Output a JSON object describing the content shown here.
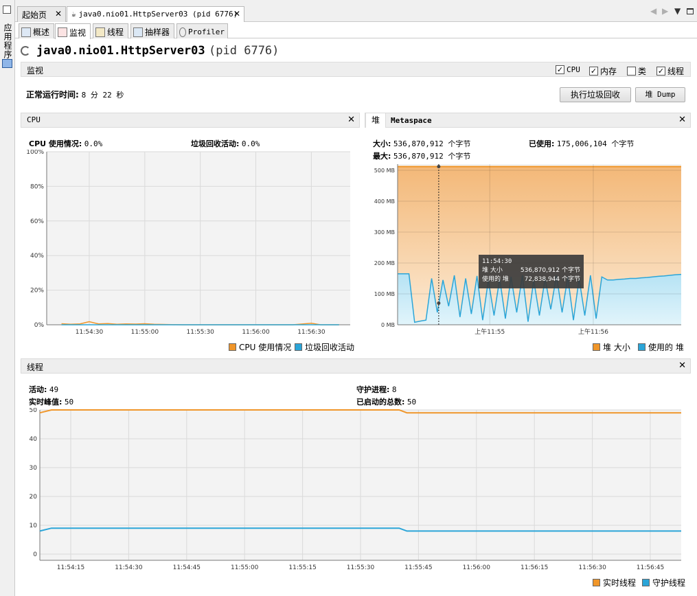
{
  "sidebar": {
    "label": "应用程序"
  },
  "doc_tabs": [
    {
      "label": "起始页",
      "close": "✕"
    },
    {
      "label": "java0.nio01.HttpServer03 (pid 6776)",
      "close": "✕"
    }
  ],
  "sub_tabs": [
    {
      "label": "概述"
    },
    {
      "label": "监视"
    },
    {
      "label": "线程"
    },
    {
      "label": "抽样器"
    },
    {
      "label": "Profiler"
    }
  ],
  "process": {
    "name": "java0.nio01.HttpServer03",
    "pid": "(pid 6776)"
  },
  "monitor": {
    "title": "监视",
    "checkboxes": [
      {
        "label": "CPU",
        "checked": true,
        "mark": "✓"
      },
      {
        "label": "内存",
        "checked": true,
        "mark": "✓"
      },
      {
        "label": "类",
        "checked": false,
        "mark": ""
      },
      {
        "label": "线程",
        "checked": true,
        "mark": "✓"
      }
    ],
    "uptime_label": "正常运行时间:",
    "uptime_value": "8 分 22 秒",
    "gc_button": "执行垃圾回收",
    "dump_button": "堆 Dump"
  },
  "cpu_panel": {
    "title": "CPU",
    "usage_label": "CPU 使用情况:",
    "usage_value": "0.0%",
    "gc_label": "垃圾回收活动:",
    "gc_value": "0.0%",
    "legend": [
      "CPU 使用情况",
      "垃圾回收活动"
    ]
  },
  "heap_panel": {
    "tabs": [
      "堆",
      "Metaspace"
    ],
    "size_label": "大小:",
    "size_value": "536,870,912 个字节",
    "max_label": "最大:",
    "max_value": "536,870,912 个字节",
    "used_label": "已使用:",
    "used_value": "175,006,104 个字节",
    "legend": [
      "堆 大小",
      "使用的 堆"
    ],
    "tooltip": {
      "time": "11:54:30",
      "rows": [
        {
          "name": "堆 大小",
          "value": "536,870,912 个字节"
        },
        {
          "name": "使用的 堆",
          "value": "72,838,944 个字节"
        }
      ]
    }
  },
  "threads_panel": {
    "title": "线程",
    "live_label": "活动:",
    "live_value": "49",
    "peak_label": "实时峰值:",
    "peak_value": "50",
    "daemon_label": "守护进程:",
    "daemon_value": "8",
    "started_label": "已启动的总数:",
    "started_value": "50",
    "legend": [
      "实时线程",
      "守护线程"
    ]
  },
  "colors": {
    "orange": "#f0962a",
    "blue": "#2ba5d8",
    "orange_fill": "#f7c995",
    "blue_fill": "#c4ebf9"
  },
  "chart_data": [
    {
      "type": "line",
      "name": "cpu",
      "ylim": [
        0,
        100
      ],
      "yticks": [
        "0%",
        "20%",
        "40%",
        "60%",
        "80%",
        "100%"
      ],
      "x": [
        "11:54:15",
        "11:54:20",
        "11:54:25",
        "11:54:30",
        "11:54:35",
        "11:54:40",
        "11:54:45",
        "11:54:50",
        "11:54:55",
        "11:55:00",
        "11:55:05",
        "11:55:10",
        "11:55:20",
        "11:55:40",
        "11:56:00",
        "11:56:20",
        "11:56:30",
        "11:56:35",
        "11:56:45"
      ],
      "xticks": [
        "11:54:30",
        "11:55:00",
        "11:55:30",
        "11:56:00",
        "11:56:30"
      ],
      "series": [
        {
          "name": "CPU 使用情况",
          "values": [
            0.6,
            0.3,
            0.5,
            1.8,
            0.5,
            0.7,
            0.3,
            0.5,
            0.4,
            0.6,
            0.3,
            0.2,
            0,
            0,
            0,
            0,
            0.9,
            0,
            0
          ]
        },
        {
          "name": "垃圾回收活动",
          "values": [
            0,
            0,
            0,
            0,
            0,
            0,
            0,
            0,
            0,
            0,
            0,
            0,
            0,
            0,
            0,
            0,
            0,
            0,
            0
          ]
        }
      ]
    },
    {
      "type": "area",
      "name": "heap",
      "ylim": [
        0,
        520
      ],
      "yticks": [
        "0 MB",
        "100 MB",
        "200 MB",
        "300 MB",
        "400 MB",
        "500 MB"
      ],
      "xticks": [
        "上午11:55",
        "上午11:56"
      ],
      "series": [
        {
          "name": "堆 大小",
          "values": [
            512,
            512
          ]
        },
        {
          "name": "使用的 堆",
          "values": [
            165,
            165,
            165,
            8,
            12,
            15,
            150,
            40,
            145,
            60,
            160,
            25,
            150,
            35,
            158,
            15,
            145,
            30,
            150,
            20,
            155,
            40,
            160,
            10,
            145,
            30,
            150,
            50,
            160,
            40,
            155,
            15,
            150,
            30,
            160,
            20,
            155,
            145,
            145,
            147,
            148,
            150,
            150,
            152,
            153,
            155,
            157,
            158,
            160,
            162,
            163
          ]
        }
      ]
    },
    {
      "type": "line",
      "name": "threads",
      "ylim": [
        0,
        50
      ],
      "yticks": [
        "0",
        "10",
        "20",
        "30",
        "40",
        "50"
      ],
      "xticks": [
        "11:54:15",
        "11:54:30",
        "11:54:45",
        "11:55:00",
        "11:55:15",
        "11:55:30",
        "11:55:45",
        "11:56:00",
        "11:56:15",
        "11:56:30",
        "11:56:45"
      ],
      "x": [
        "11:54:07",
        "11:54:10",
        "11:55:40",
        "11:55:42",
        "11:56:53"
      ],
      "series": [
        {
          "name": "实时线程",
          "values": [
            49,
            50,
            50,
            49,
            49
          ]
        },
        {
          "name": "守护线程",
          "values": [
            8,
            9,
            9,
            8,
            8
          ]
        }
      ]
    }
  ]
}
